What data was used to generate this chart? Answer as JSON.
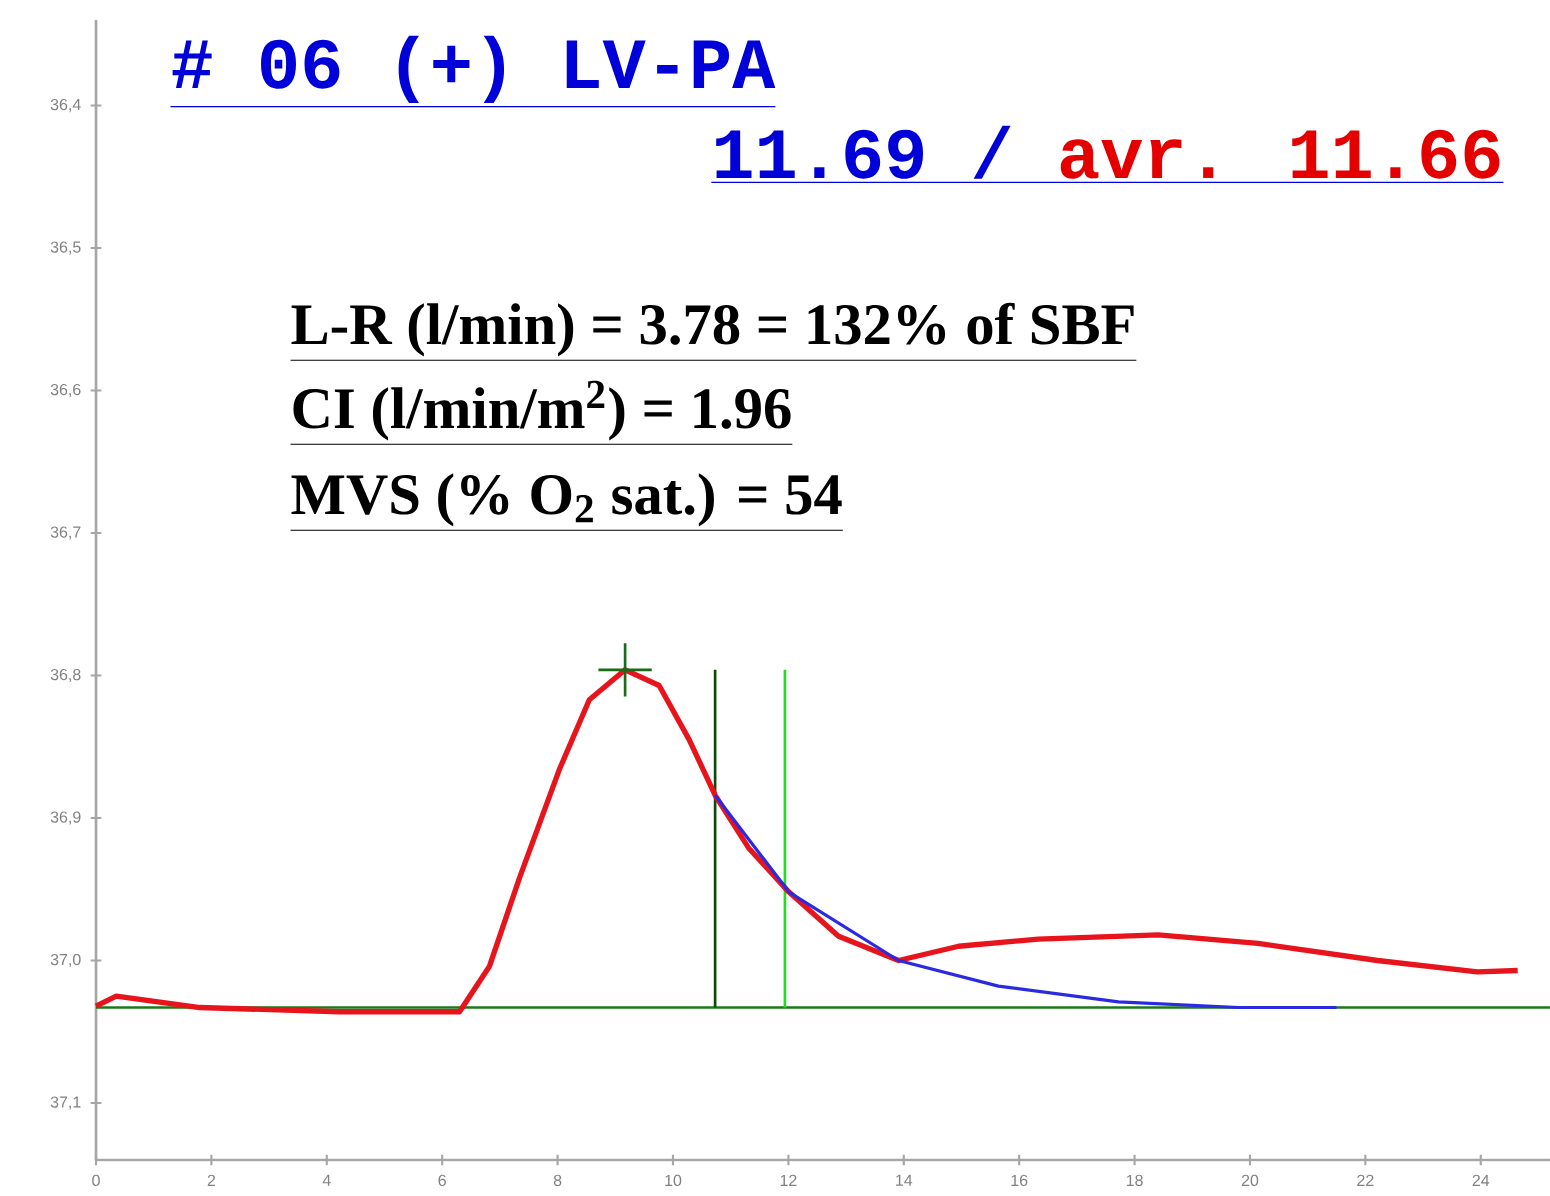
{
  "chart_data": {
    "type": "line",
    "annotations": [
      "# 06 (+) LV-PA",
      "11.69 /",
      "avr. 11.66",
      "L-R (l/min)  = 3.78 = 132% of  SBF",
      "CI (l/min/m$^{2}$)  = 1.96",
      "MVS (% O$_{2}$ sat.)  = 54"
    ],
    "xlim": [
      0,
      25.2
    ],
    "ylim": [
      37.14,
      36.34
    ],
    "xticks": [
      0,
      2,
      4,
      6,
      8,
      10,
      12,
      14,
      16,
      18,
      20,
      22,
      24
    ],
    "yticks": [
      {
        "value": 36.4,
        "label": "36,4"
      },
      {
        "value": 36.5,
        "label": "36,5"
      },
      {
        "value": 36.6,
        "label": "36,6"
      },
      {
        "value": 36.7,
        "label": "36,7"
      },
      {
        "value": 36.8,
        "label": "36,8"
      },
      {
        "value": 36.9,
        "label": "36,9"
      },
      {
        "value": 37.0,
        "label": "37,0"
      },
      {
        "value": 37.1,
        "label": "37,1"
      }
    ],
    "series": [
      {
        "color": "#e8141c",
        "x": [
          0,
          0.35,
          1.8,
          4.22,
          6.3,
          6.82,
          7.34,
          8.03,
          8.55,
          9.17,
          9.76,
          10.28,
          10.73,
          11.31,
          12.01,
          12.87,
          13.91,
          14.95,
          16.33,
          18.41,
          20.14,
          22.21,
          23.94,
          24.64
        ],
        "values": [
          37.032,
          37.025,
          37.033,
          37.036,
          37.036,
          37.004,
          36.942,
          36.866,
          36.817,
          36.796,
          36.807,
          36.845,
          36.884,
          36.921,
          36.952,
          36.983,
          37.0,
          36.99,
          36.985,
          36.982,
          36.988,
          37.0,
          37.008,
          37.007
        ]
      },
      {
        "color": "#2a2ae0",
        "x": [
          10.73,
          12.01,
          13.91,
          15.64,
          17.72,
          19.8,
          21.5
        ],
        "values": [
          36.884,
          36.952,
          37.0,
          37.018,
          37.029,
          37.033,
          37.033
        ]
      },
      {
        "type": "scatter",
        "color": "#1a6a1a",
        "marker": "cross",
        "x": [
          9.17
        ],
        "values": [
          36.796
        ]
      }
    ],
    "ref_lines": [
      {
        "axis": "y",
        "value": 37.033,
        "color": "#1a7a1a"
      },
      {
        "axis": "x",
        "value": 10.73,
        "color": "#0b4a0b"
      },
      {
        "axis": "x",
        "value": 11.94,
        "color": "#22dd22"
      }
    ]
  }
}
